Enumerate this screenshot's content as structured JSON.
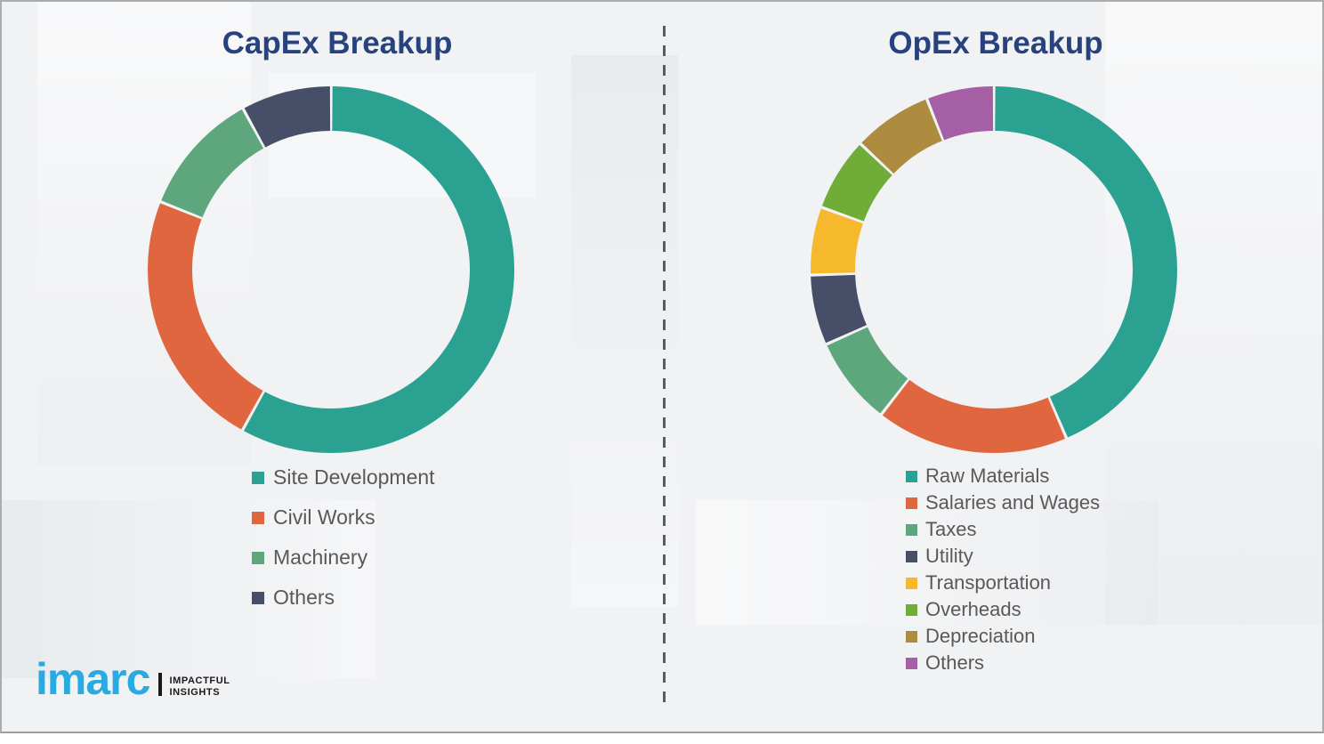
{
  "chart_data": [
    {
      "type": "donut",
      "title": "CapEx Breakup",
      "categories": [
        "Site Development",
        "Civil Works",
        "Machinery",
        "Others"
      ],
      "values": [
        58,
        23,
        11,
        8
      ],
      "unit": "percent-estimated",
      "colors": [
        "#2aa191",
        "#e0663f",
        "#5ea67b",
        "#474e68"
      ],
      "start_angle_deg": 0,
      "direction": "clockwise",
      "legend_position": "bottom-left",
      "data_labels_shown": false
    },
    {
      "type": "donut",
      "title": "OpEx Breakup",
      "categories": [
        "Raw Materials",
        "Salaries and Wages",
        "Taxes",
        "Utility",
        "Transportation",
        "Overheads",
        "Depreciation",
        "Others"
      ],
      "values": [
        43.5,
        17,
        7.8,
        6.2,
        6,
        6.5,
        7,
        6
      ],
      "unit": "percent-estimated",
      "colors": [
        "#2aa191",
        "#e0663f",
        "#5ea67b",
        "#474e68",
        "#f6b82c",
        "#6fac38",
        "#ae8c3f",
        "#a55fa4"
      ],
      "start_angle_deg": 0,
      "direction": "clockwise",
      "legend_position": "bottom-left",
      "data_labels_shown": false
    }
  ],
  "branding": {
    "logo_text": "imarc",
    "tagline_line1": "IMPACTFUL",
    "tagline_line2": "INSIGHTS"
  },
  "style": {
    "title_color": "#27427c",
    "legend_text_color": "#595959",
    "logo_blue": "#29abe2",
    "divider_color": "#575c63",
    "background": "#f1f2f4",
    "border_color": "#aaacae"
  }
}
